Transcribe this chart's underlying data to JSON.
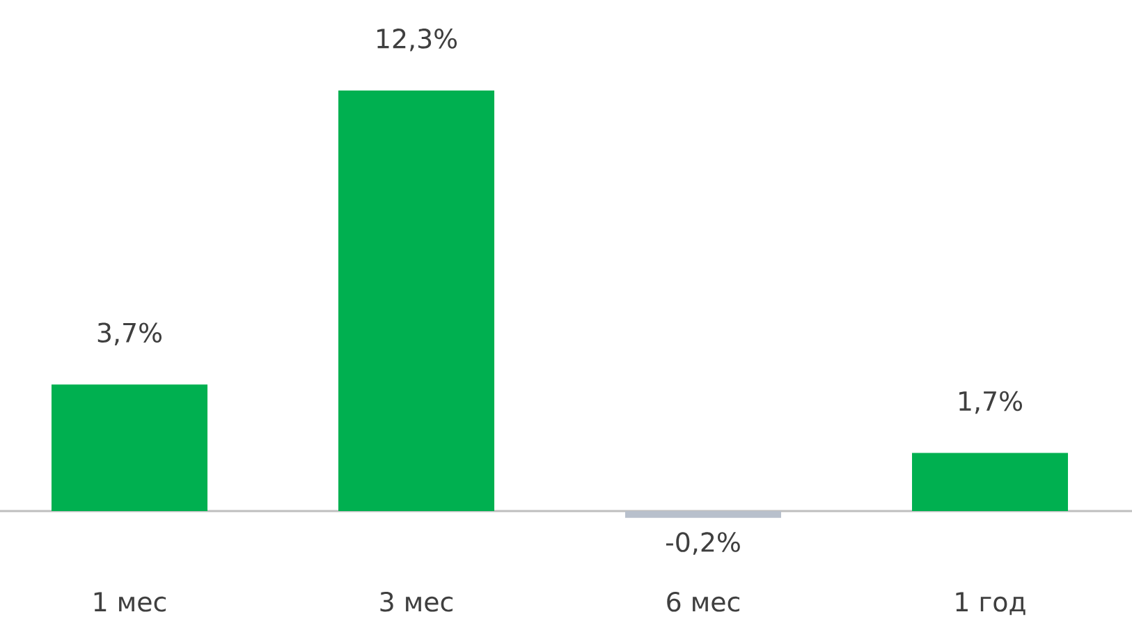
{
  "chart_data": {
    "type": "bar",
    "categories": [
      "1 мес",
      "3 мес",
      "6 мес",
      "1 год"
    ],
    "values": [
      3.7,
      12.3,
      -0.2,
      1.7
    ],
    "colors": [
      "#00b050",
      "#00b050",
      "#b8c0cc",
      "#00b050"
    ],
    "value_labels": [
      "3,7%",
      "12,3%",
      "-0,2%",
      "1,7%"
    ]
  }
}
